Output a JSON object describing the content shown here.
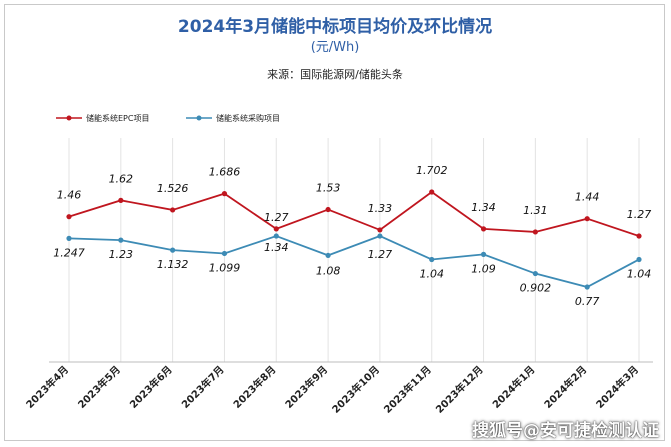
{
  "colors": {
    "epc": "#c0161f",
    "procure": "#3d8bb5",
    "title": "#2f5fa6",
    "grid": "#e3e3e3"
  },
  "chart_data": {
    "type": "line",
    "title": "2024年3月储能中标项目均价及环比情况",
    "subtitle": "(元/Wh)",
    "source": "来源：国际能源网/储能头条",
    "legend_position": "top-left",
    "categories": [
      "2023年4月",
      "2023年5月",
      "2023年6月",
      "2023年7月",
      "2023年8月",
      "2023年9月",
      "2023年10月",
      "2023年11月",
      "2023年12月",
      "2024年1月",
      "2024年2月",
      "2024年3月"
    ],
    "series": [
      {
        "name": "储能系统EPC项目",
        "color": "#c0161f",
        "values": [
          1.46,
          1.62,
          1.526,
          1.686,
          1.34,
          1.53,
          1.33,
          1.702,
          1.34,
          1.31,
          1.44,
          1.27
        ],
        "labels": [
          "1.46",
          "1.62",
          "1.526",
          "1.686",
          "1.34",
          "1.53",
          "1.33",
          "1.702",
          "1.34",
          "1.31",
          "1.44",
          "1.27"
        ]
      },
      {
        "name": "储能系统采购项目",
        "color": "#3d8bb5",
        "values": [
          1.247,
          1.23,
          1.132,
          1.099,
          1.27,
          1.08,
          1.27,
          1.04,
          1.09,
          0.902,
          0.77,
          1.04
        ],
        "labels": [
          "1.247",
          "1.23",
          "1.132",
          "1.099",
          "1.27",
          "1.08",
          "1.27",
          "1.04",
          "1.09",
          "0.902",
          "0.77",
          "1.04"
        ]
      }
    ],
    "grid": true,
    "markers": true
  },
  "watermark": "搜狐号@安可捷检测认证"
}
